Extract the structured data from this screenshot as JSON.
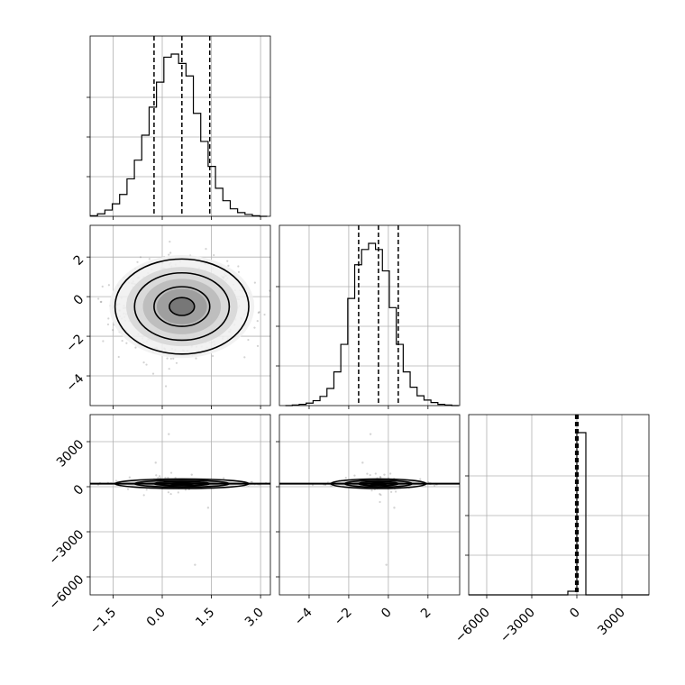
{
  "chart_data": {
    "type": "corner",
    "grid": true,
    "parameters": [
      {
        "range": [
          -2.2,
          3.3
        ],
        "ticks": [
          -1.5,
          0.0,
          1.5,
          3.0
        ],
        "tick_labels": [
          "−1.5",
          "0.0",
          "1.5",
          "3.0"
        ],
        "quantiles": [
          -0.25,
          0.6,
          1.45
        ]
      },
      {
        "range": [
          -5.5,
          3.6
        ],
        "ticks": [
          -4,
          -2,
          0,
          2
        ],
        "tick_labels": [
          "−4",
          "−2",
          "0",
          "2"
        ],
        "quantiles": [
          -1.5,
          -0.5,
          0.5
        ]
      },
      {
        "range": [
          -7200,
          4800
        ],
        "ticks": [
          -6000,
          -3000,
          0,
          3000
        ],
        "tick_labels": [
          "−6000",
          "−3000",
          "0",
          "3000"
        ],
        "quantiles": [
          -80,
          0,
          80
        ]
      }
    ],
    "histograms": [
      {
        "param": 0,
        "bin_edges": [
          -2.2,
          -1.975,
          -1.75,
          -1.525,
          -1.3,
          -1.075,
          -0.85,
          -0.625,
          -0.4,
          -0.175,
          0.05,
          0.275,
          0.5,
          0.725,
          0.95,
          1.175,
          1.4,
          1.625,
          1.85,
          2.075,
          2.3,
          2.525,
          2.75,
          2.975,
          3.2
        ],
        "counts": [
          1,
          4,
          10,
          20,
          35,
          60,
          90,
          130,
          175,
          215,
          255,
          260,
          245,
          225,
          165,
          120,
          80,
          45,
          25,
          12,
          6,
          3,
          1,
          0
        ]
      },
      {
        "param": 1,
        "bin_edges": [
          -5.2,
          -4.85,
          -4.5,
          -4.15,
          -3.8,
          -3.45,
          -3.1,
          -2.75,
          -2.4,
          -2.05,
          -1.7,
          -1.35,
          -1.0,
          -0.65,
          -0.3,
          0.05,
          0.4,
          0.75,
          1.1,
          1.45,
          1.8,
          2.15,
          2.5,
          2.85,
          3.2,
          3.55
        ],
        "counts": [
          0,
          1,
          2,
          4,
          8,
          15,
          28,
          55,
          100,
          175,
          230,
          255,
          265,
          255,
          220,
          160,
          100,
          55,
          30,
          16,
          9,
          5,
          2,
          1,
          0
        ]
      },
      {
        "param": 2,
        "bin_edges": [
          -7200,
          -6600,
          -6000,
          -5400,
          -4800,
          -4200,
          -3600,
          -3000,
          -2400,
          -1800,
          -1200,
          -600,
          0,
          600,
          1200,
          1800,
          2400,
          3000,
          3600,
          4200,
          4800
        ],
        "counts": [
          0,
          0,
          0,
          0,
          0,
          0,
          0,
          0,
          0,
          0,
          0,
          1,
          45,
          0,
          0,
          0,
          0,
          0,
          0,
          0
        ]
      }
    ]
  }
}
